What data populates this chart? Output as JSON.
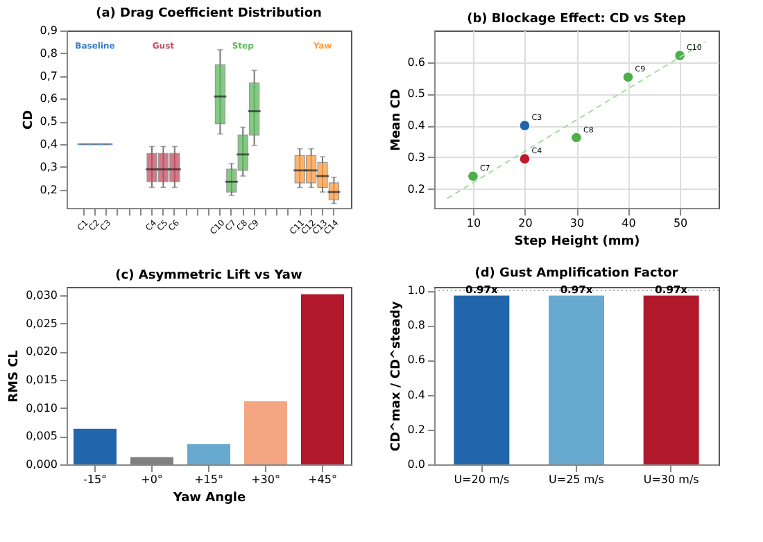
{
  "chart_data": [
    {
      "type": "box",
      "title": "(a) Drag Coefficient Distribution",
      "ylabel": "CD",
      "categories": [
        "C1",
        "C2",
        "C3",
        null,
        null,
        null,
        "C4",
        "C5",
        "C6",
        null,
        null,
        null,
        "C10",
        "C7",
        "C8",
        "C9",
        null,
        null,
        null,
        "C11",
        "C12",
        "C13",
        "C14"
      ],
      "ylim": [
        0.12,
        0.9
      ],
      "yticks": [
        {
          "value": 0.2,
          "label": "0,2"
        },
        {
          "value": 0.3,
          "label": "0,3"
        },
        {
          "value": 0.4,
          "label": "0,4"
        },
        {
          "value": 0.5,
          "label": "0,5"
        },
        {
          "value": 0.6,
          "label": "0,6"
        },
        {
          "value": 0.7,
          "label": "0,7"
        },
        {
          "value": 0.8,
          "label": "0,8"
        },
        {
          "value": 0.9,
          "label": "0,9"
        }
      ],
      "grid": false,
      "series": [
        {
          "name": "Baseline",
          "color": "#3a7dc9",
          "boxes": [
            {
              "low": 0.4,
              "q1": 0.4,
              "median": 0.4,
              "q3": 0.4,
              "high": 0.4
            },
            {
              "low": 0.4,
              "q1": 0.4,
              "median": 0.4,
              "q3": 0.4,
              "high": 0.4
            },
            {
              "low": 0.4,
              "q1": 0.4,
              "median": 0.4,
              "q3": 0.4,
              "high": 0.4
            },
            null,
            null,
            null,
            null,
            null,
            null,
            null,
            null,
            null,
            null,
            null,
            null,
            null,
            null,
            null,
            null,
            null,
            null,
            null,
            null
          ]
        },
        {
          "name": "Gust",
          "color": "#c44e5f",
          "boxes": [
            null,
            null,
            null,
            null,
            null,
            null,
            {
              "low": 0.21,
              "q1": 0.235,
              "median": 0.29,
              "q3": 0.36,
              "high": 0.39
            },
            {
              "low": 0.21,
              "q1": 0.235,
              "median": 0.29,
              "q3": 0.36,
              "high": 0.39
            },
            {
              "low": 0.21,
              "q1": 0.235,
              "median": 0.29,
              "q3": 0.36,
              "high": 0.39
            },
            null,
            null,
            null,
            null,
            null,
            null,
            null,
            null,
            null,
            null,
            null,
            null,
            null,
            null
          ]
        },
        {
          "name": "Step",
          "color": "#5cb85c",
          "boxes": [
            null,
            null,
            null,
            null,
            null,
            null,
            null,
            null,
            null,
            null,
            null,
            null,
            {
              "low": 0.445,
              "q1": 0.49,
              "median": 0.61,
              "q3": 0.75,
              "high": 0.815
            },
            {
              "low": 0.175,
              "q1": 0.19,
              "median": 0.235,
              "q3": 0.29,
              "high": 0.315
            },
            {
              "low": 0.26,
              "q1": 0.285,
              "median": 0.355,
              "q3": 0.44,
              "high": 0.475
            },
            {
              "low": 0.395,
              "q1": 0.44,
              "median": 0.545,
              "q3": 0.67,
              "high": 0.725
            },
            null,
            null,
            null,
            null,
            null,
            null,
            null
          ]
        },
        {
          "name": "Yaw",
          "color": "#ff9a3c",
          "boxes": [
            null,
            null,
            null,
            null,
            null,
            null,
            null,
            null,
            null,
            null,
            null,
            null,
            null,
            null,
            null,
            null,
            null,
            null,
            null,
            {
              "low": 0.21,
              "q1": 0.23,
              "median": 0.285,
              "q3": 0.35,
              "high": 0.38
            },
            {
              "low": 0.21,
              "q1": 0.23,
              "median": 0.285,
              "q3": 0.35,
              "high": 0.38
            },
            {
              "low": 0.19,
              "q1": 0.21,
              "median": 0.26,
              "q3": 0.32,
              "high": 0.345
            },
            {
              "low": 0.14,
              "q1": 0.155,
              "median": 0.19,
              "q3": 0.23,
              "high": 0.255
            }
          ]
        }
      ]
    },
    {
      "type": "scatter",
      "title": "(b) Blockage Effect: CD vs Step",
      "xlabel": "Step Height (mm)",
      "ylabel": "Mean CD",
      "xlim": [
        2.5,
        57.5
      ],
      "xticks": [
        10,
        20,
        30,
        40,
        50
      ],
      "ylim": [
        0.14,
        0.7
      ],
      "yticks": [
        0.2,
        0.3,
        0.4,
        0.5,
        0.6
      ],
      "grid": true,
      "series": [
        {
          "type": "scatter",
          "marker": "circle",
          "x": [
            20,
            20,
            10,
            30,
            40,
            50
          ],
          "values": [
            0.4,
            0.295,
            0.24,
            0.362,
            0.553,
            0.621
          ],
          "colors": [
            "#2166ac",
            "#c0182b",
            "#4daf4a",
            "#4daf4a",
            "#4daf4a",
            "#4daf4a"
          ]
        },
        {
          "type": "line",
          "line_style": "dashed",
          "color": "#a6dba0",
          "x": [
            5,
            55
          ],
          "values": [
            0.17,
            0.665
          ]
        }
      ],
      "annotations": [
        {
          "text": "C3",
          "x": 20,
          "y": 0.4
        },
        {
          "text": "C4",
          "x": 20,
          "y": 0.295
        },
        {
          "text": "C7",
          "x": 10,
          "y": 0.24
        },
        {
          "text": "C8",
          "x": 30,
          "y": 0.362
        },
        {
          "text": "C9",
          "x": 40,
          "y": 0.553
        },
        {
          "text": "C10",
          "x": 50,
          "y": 0.621
        }
      ]
    },
    {
      "type": "bar",
      "title": "(c) Asymmetric Lift vs Yaw",
      "xlabel": "Yaw Angle",
      "ylabel": "RMS CL",
      "categories": [
        "-15°",
        "+0°",
        "+15°",
        "+30°",
        "+45°"
      ],
      "values": [
        0.0063,
        0.0013,
        0.0036,
        0.0112,
        0.0302
      ],
      "colors": [
        "#2166ac",
        "#808080",
        "#67a9cf",
        "#f4a582",
        "#b2182b"
      ],
      "ylim": [
        0,
        0.0315
      ],
      "yticks": [
        {
          "value": 0,
          "label": "0,000"
        },
        {
          "value": 0.005,
          "label": "0,005"
        },
        {
          "value": 0.01,
          "label": "0,010"
        },
        {
          "value": 0.015,
          "label": "0,015"
        },
        {
          "value": 0.02,
          "label": "0,020"
        },
        {
          "value": 0.025,
          "label": "0,025"
        },
        {
          "value": 0.03,
          "label": "0,030"
        }
      ],
      "grid": false
    },
    {
      "type": "bar",
      "title": "(d) Gust Amplification Factor",
      "ylabel": "CD^max / CD^steady",
      "categories": [
        "U=20 m/s",
        "U=25 m/s",
        "U=30 m/s"
      ],
      "values": [
        0.97,
        0.97,
        0.97
      ],
      "value_labels": [
        "0.97x",
        "0.97x",
        "0.97x"
      ],
      "colors": [
        "#2166ac",
        "#67a9cf",
        "#b2182b"
      ],
      "ylim": [
        0,
        1.02
      ],
      "yticks": [
        {
          "value": 0,
          "label": "0.0"
        },
        {
          "value": 0.2,
          "label": "0.2"
        },
        {
          "value": 0.4,
          "label": "0.4"
        },
        {
          "value": 0.6,
          "label": "0.6"
        },
        {
          "value": 0.8,
          "label": "0.8"
        },
        {
          "value": 1,
          "label": "1.0"
        }
      ],
      "ref_lines": [
        {
          "axis": "y",
          "value": 1,
          "color": "#aaaaaa",
          "line_style": "dotted"
        }
      ],
      "grid": false
    }
  ]
}
